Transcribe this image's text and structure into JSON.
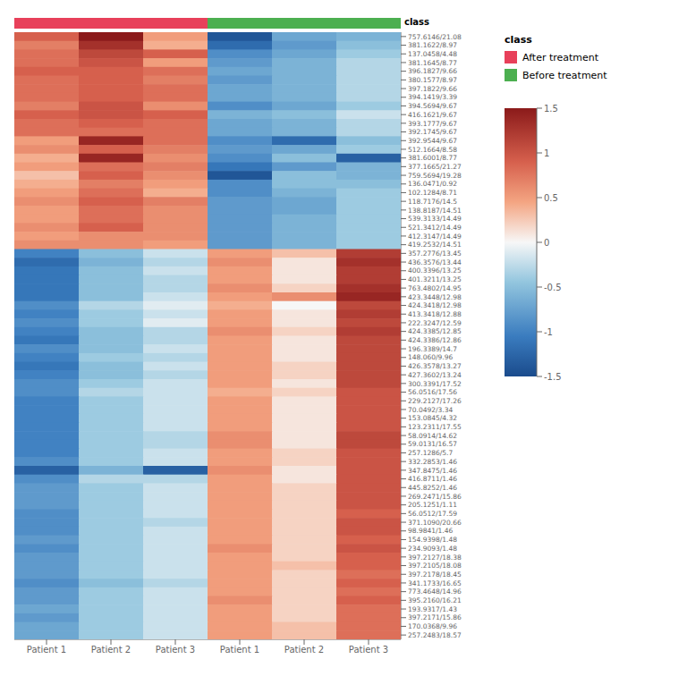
{
  "chart_data": {
    "type": "heatmap",
    "categories": [
      "Patient 1",
      "Patient 2",
      "Patient 3",
      "Patient 1",
      "Patient 2",
      "Patient 3"
    ],
    "row_labels": [
      "757.6146/21.08",
      "381.1622/8.97",
      "137.0458/4.48",
      "381.1645/8.77",
      "396.1827/9.66",
      "380.1577/8.97",
      "397.1822/9.66",
      "394.1419/3.39",
      "394.5694/9.67",
      "416.1621/9.67",
      "393.1777/9.67",
      "392.1745/9.67",
      "392.9544/9.67",
      "512.1664/8.58",
      "381.6001/8.77",
      "377.1665/21.27",
      "759.5694/19.28",
      "136.0471/0.92",
      "102.1284/8.71",
      "118.7176/14.5",
      "138.8187/14.51",
      "539.3133/14.49",
      "521.3412/14.49",
      "412.3147/14.49",
      "419.2532/14.51",
      "357.2776/13.45",
      "436.3576/13.44",
      "400.3396/13.25",
      "401.3211/13.25",
      "763.4802/14.95",
      "423.3448/12.98",
      "424.3418/12.98",
      "413.3418/12.88",
      "222.3247/12.59",
      "424.3385/12.85",
      "424.3386/12.86",
      "196.3389/14.7",
      "148.060/9.96",
      "426.3578/13.27",
      "427.3602/13.24",
      "300.3391/17.52",
      "56.0516/17.56",
      "229.2127/17.26",
      "70.0492/3.34",
      "153.0845/4.32",
      "123.2311/17.55",
      "58.0914/14.62",
      "59.0131/16.57",
      "257.1286/5.7",
      "332.2853/1.46",
      "347.8475/1.46",
      "416.8711/1.46",
      "445.8252/1.46",
      "269.2471/15.86",
      "205.1251/1.11",
      "56.0512/17.59",
      "371.1090/20.66",
      "98.9841/1.46",
      "154.9398/1.48",
      "234.9093/1.48",
      "397.2127/18.38",
      "397.2105/18.08",
      "397.2178/18.45",
      "341.1733/16.65",
      "773.4648/14.96",
      "395.2160/16.21",
      "193.9317/1.43",
      "397.2171/15.86",
      "170.0368/9.96",
      "257.2483/18.57"
    ],
    "column_classes": [
      "after",
      "after",
      "after",
      "before",
      "before",
      "before"
    ],
    "class_colors": {
      "after": "#e8405a",
      "before": "#4caf50"
    },
    "header_label": "class",
    "legend_title": "class",
    "legend_entries": [
      {
        "label": "After treatment",
        "color": "#e8405a"
      },
      {
        "label": "Before treatment",
        "color": "#4caf50"
      }
    ],
    "colorbar": {
      "vmin": -1.5,
      "vmax": 1.5,
      "ticks": [
        1.5,
        1.0,
        0.5,
        0.0,
        -0.5,
        -1.0,
        -1.5
      ]
    },
    "colorscale": [
      [
        0.0,
        "#1a4b8c"
      ],
      [
        0.15,
        "#3a7cbf"
      ],
      [
        0.35,
        "#92c5de"
      ],
      [
        0.5,
        "#f7f7f7"
      ],
      [
        0.65,
        "#f4a582"
      ],
      [
        0.8,
        "#d6604d"
      ],
      [
        1.0,
        "#8b1a1a"
      ]
    ],
    "values": [
      [
        0.9,
        1.5,
        0.5,
        -1.4,
        -0.7,
        -0.6
      ],
      [
        0.7,
        1.3,
        0.4,
        -1.2,
        -0.8,
        -0.5
      ],
      [
        0.8,
        1.1,
        0.9,
        -0.9,
        -0.7,
        -0.4
      ],
      [
        0.8,
        1.0,
        0.5,
        -0.8,
        -0.6,
        -0.3
      ],
      [
        0.9,
        0.9,
        0.8,
        -0.7,
        -0.6,
        -0.3
      ],
      [
        0.8,
        0.9,
        0.7,
        -0.8,
        -0.6,
        -0.3
      ],
      [
        0.8,
        0.9,
        0.8,
        -0.7,
        -0.6,
        -0.3
      ],
      [
        0.8,
        0.9,
        0.8,
        -0.7,
        -0.6,
        -0.3
      ],
      [
        0.7,
        1.0,
        0.6,
        -0.9,
        -0.7,
        -0.4
      ],
      [
        0.9,
        1.0,
        0.9,
        -0.6,
        -0.5,
        -0.2
      ],
      [
        0.8,
        0.9,
        0.8,
        -0.7,
        -0.6,
        -0.3
      ],
      [
        0.8,
        0.8,
        0.8,
        -0.7,
        -0.6,
        -0.3
      ],
      [
        0.5,
        1.4,
        0.8,
        -0.9,
        -1.2,
        -0.5
      ],
      [
        0.6,
        0.9,
        0.7,
        -0.8,
        -0.7,
        -0.4
      ],
      [
        0.4,
        1.4,
        0.6,
        -0.9,
        -0.5,
        -1.3
      ],
      [
        0.5,
        0.8,
        0.7,
        -1.1,
        -0.8,
        -0.6
      ],
      [
        0.3,
        0.9,
        0.6,
        -1.4,
        -0.5,
        -0.6
      ],
      [
        0.4,
        0.7,
        0.5,
        -0.9,
        -0.5,
        -0.5
      ],
      [
        0.5,
        0.8,
        0.4,
        -0.9,
        -0.6,
        -0.4
      ],
      [
        0.6,
        0.9,
        0.7,
        -0.8,
        -0.7,
        -0.4
      ],
      [
        0.5,
        0.8,
        0.6,
        -0.8,
        -0.7,
        -0.4
      ],
      [
        0.5,
        0.8,
        0.6,
        -0.8,
        -0.6,
        -0.4
      ],
      [
        0.6,
        0.9,
        0.6,
        -0.8,
        -0.6,
        -0.4
      ],
      [
        0.5,
        0.6,
        0.6,
        -0.8,
        -0.6,
        -0.4
      ],
      [
        0.6,
        0.6,
        0.5,
        -0.8,
        -0.6,
        -0.4
      ],
      [
        -1.0,
        -0.5,
        -0.2,
        0.5,
        0.3,
        1.2
      ],
      [
        -1.2,
        -0.6,
        -0.3,
        0.6,
        0.1,
        1.3
      ],
      [
        -1.1,
        -0.5,
        -0.2,
        0.5,
        0.1,
        1.2
      ],
      [
        -1.1,
        -0.5,
        -0.3,
        0.5,
        0.1,
        1.2
      ],
      [
        -1.1,
        -0.5,
        -0.3,
        0.6,
        0.2,
        1.3
      ],
      [
        -1.1,
        -0.5,
        -0.2,
        0.5,
        0.6,
        1.4
      ],
      [
        -0.9,
        -0.3,
        -0.1,
        0.4,
        0.0,
        1.1
      ],
      [
        -1.0,
        -0.4,
        -0.2,
        0.5,
        0.1,
        1.2
      ],
      [
        -0.9,
        -0.4,
        -0.1,
        0.5,
        0.1,
        1.1
      ],
      [
        -1.0,
        -0.5,
        -0.3,
        0.6,
        0.2,
        1.2
      ],
      [
        -1.1,
        -0.5,
        -0.3,
        0.5,
        0.1,
        1.1
      ],
      [
        -0.9,
        -0.5,
        -0.2,
        0.5,
        0.1,
        1.1
      ],
      [
        -1.0,
        -0.4,
        -0.3,
        0.5,
        0.1,
        1.1
      ],
      [
        -1.1,
        -0.5,
        -0.2,
        0.5,
        0.2,
        1.1
      ],
      [
        -1.0,
        -0.5,
        -0.3,
        0.5,
        0.2,
        1.1
      ],
      [
        -0.9,
        -0.4,
        -0.2,
        0.5,
        0.1,
        1.1
      ],
      [
        -0.9,
        -0.3,
        -0.2,
        0.4,
        0.2,
        1.0
      ],
      [
        -1.0,
        -0.4,
        -0.2,
        0.5,
        0.1,
        1.0
      ],
      [
        -1.0,
        -0.4,
        -0.2,
        0.5,
        0.1,
        1.0
      ],
      [
        -1.0,
        -0.4,
        -0.2,
        0.5,
        0.1,
        1.0
      ],
      [
        -1.0,
        -0.4,
        -0.2,
        0.5,
        0.1,
        1.0
      ],
      [
        -1.0,
        -0.4,
        -0.3,
        0.6,
        0.1,
        1.1
      ],
      [
        -1.0,
        -0.4,
        -0.3,
        0.6,
        0.1,
        1.1
      ],
      [
        -1.0,
        -0.4,
        -0.2,
        0.5,
        0.2,
        1.0
      ],
      [
        -0.9,
        -0.4,
        -0.2,
        0.5,
        0.2,
        1.0
      ],
      [
        -1.3,
        -0.6,
        -1.3,
        0.6,
        0.1,
        1.0
      ],
      [
        -0.9,
        -0.3,
        -0.3,
        0.5,
        0.1,
        1.0
      ],
      [
        -0.8,
        -0.4,
        -0.2,
        0.5,
        0.2,
        1.0
      ],
      [
        -0.8,
        -0.4,
        -0.2,
        0.5,
        0.2,
        1.0
      ],
      [
        -0.8,
        -0.4,
        -0.2,
        0.5,
        0.2,
        1.0
      ],
      [
        -0.9,
        -0.4,
        -0.2,
        0.5,
        0.2,
        0.9
      ],
      [
        -0.9,
        -0.4,
        -0.3,
        0.5,
        0.2,
        1.0
      ],
      [
        -0.9,
        -0.4,
        -0.2,
        0.5,
        0.2,
        1.0
      ],
      [
        -0.8,
        -0.4,
        -0.2,
        0.5,
        0.2,
        0.9
      ],
      [
        -0.9,
        -0.4,
        -0.2,
        0.6,
        0.2,
        1.0
      ],
      [
        -0.8,
        -0.4,
        -0.2,
        0.5,
        0.2,
        0.9
      ],
      [
        -0.8,
        -0.4,
        -0.2,
        0.5,
        0.3,
        0.9
      ],
      [
        -0.8,
        -0.4,
        -0.2,
        0.5,
        0.2,
        0.8
      ],
      [
        -0.9,
        -0.5,
        -0.3,
        0.5,
        0.2,
        0.9
      ],
      [
        -0.8,
        -0.4,
        -0.2,
        0.5,
        0.2,
        0.8
      ],
      [
        -0.8,
        -0.4,
        -0.2,
        0.6,
        0.2,
        0.9
      ],
      [
        -0.7,
        -0.4,
        -0.2,
        0.5,
        0.2,
        0.8
      ],
      [
        -0.8,
        -0.4,
        -0.2,
        0.5,
        0.2,
        0.8
      ],
      [
        -0.7,
        -0.4,
        -0.2,
        0.5,
        0.3,
        0.8
      ],
      [
        -0.7,
        -0.4,
        -0.2,
        0.5,
        0.3,
        0.8
      ]
    ]
  }
}
